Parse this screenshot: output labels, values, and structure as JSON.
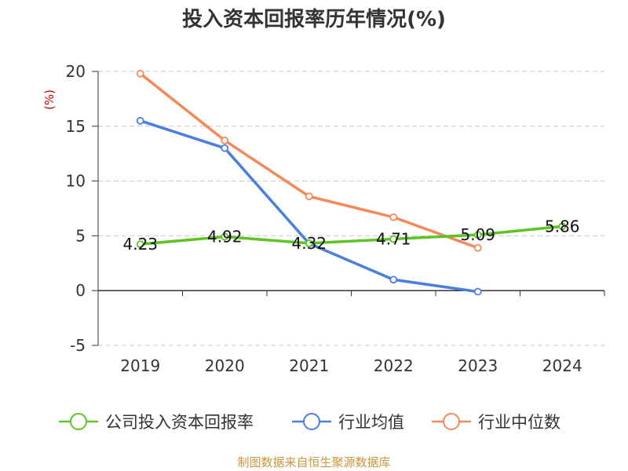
{
  "chart_data": {
    "type": "line",
    "title": "投入资本回报率历年情况(%)",
    "ylabel": "(%)",
    "xlabel": "",
    "categories": [
      "2019",
      "2020",
      "2021",
      "2022",
      "2023",
      "2024"
    ],
    "ylim": [
      -5,
      20
    ],
    "yticks": [
      -5,
      0,
      5,
      10,
      15,
      20
    ],
    "grid": true,
    "legend_position": "bottom",
    "series": [
      {
        "name": "公司投入资本回报率",
        "color": "#5ec424",
        "values": [
          4.23,
          4.92,
          4.32,
          4.71,
          5.09,
          5.86
        ],
        "labels": [
          "4.23",
          "4.92",
          "4.32",
          "4.71",
          "5.09",
          "5.86"
        ]
      },
      {
        "name": "行业均值",
        "color": "#4a7fdc",
        "values": [
          15.5,
          13.0,
          4.3,
          1.0,
          -0.1,
          null
        ]
      },
      {
        "name": "行业中位数",
        "color": "#f5895a",
        "values": [
          19.8,
          13.7,
          8.6,
          6.7,
          3.9,
          null
        ]
      }
    ]
  },
  "source": "制图数据来自恒生聚源数据库"
}
